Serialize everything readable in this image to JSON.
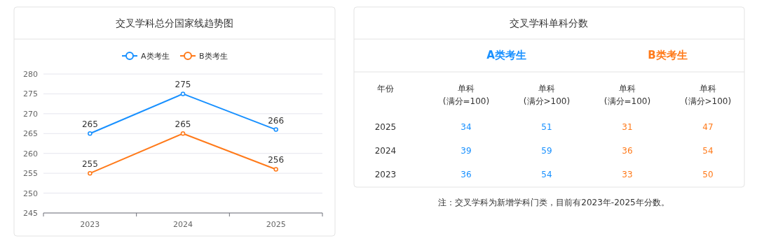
{
  "chart_data": [
    {
      "type": "line",
      "title": "交叉学科总分国家线趋势图",
      "categories": [
        "2023",
        "2024",
        "2025"
      ],
      "series": [
        {
          "name": "A类考生",
          "color": "#1890ff",
          "values": [
            265,
            275,
            266
          ]
        },
        {
          "name": "B类考生",
          "color": "#ff7a1a",
          "values": [
            255,
            265,
            256
          ]
        }
      ],
      "ylim": [
        245,
        280
      ],
      "yticks": [
        245,
        250,
        255,
        260,
        265,
        270,
        275,
        280
      ],
      "grid": "y",
      "legend": "top",
      "marker": "circle",
      "data_labels": true
    },
    {
      "type": "other",
      "title": "交叉学科单科分数",
      "ylabel": "年份",
      "categories": [
        "2025",
        "2024",
        "2023"
      ],
      "series": [
        {
          "name": "单科\n(满分=100)",
          "colors": [
            "#1890ff",
            "#1890ff",
            "#1890ff"
          ],
          "values": [
            34,
            39,
            36
          ]
        },
        {
          "name": "单科\n(满分>100)",
          "colors": [
            "#1890ff",
            "#1890ff",
            "#1890ff"
          ],
          "values": [
            51,
            59,
            54
          ]
        },
        {
          "name": "单科\n(满分=100)",
          "colors": [
            "#ff7a1a",
            "#ff7a1a",
            "#ff7a1a"
          ],
          "values": [
            31,
            36,
            33
          ]
        },
        {
          "name": "单科\n(满分>100)",
          "colors": [
            "#ff7a1a",
            "#ff7a1a",
            "#ff7a1a"
          ],
          "values": [
            47,
            54,
            50
          ]
        }
      ],
      "data_labels": true,
      "annotations": [
        "A类考生",
        "B类考生",
        "注：交叉学科为新增学科门类，目前有2023年-2025年分数。"
      ]
    }
  ]
}
